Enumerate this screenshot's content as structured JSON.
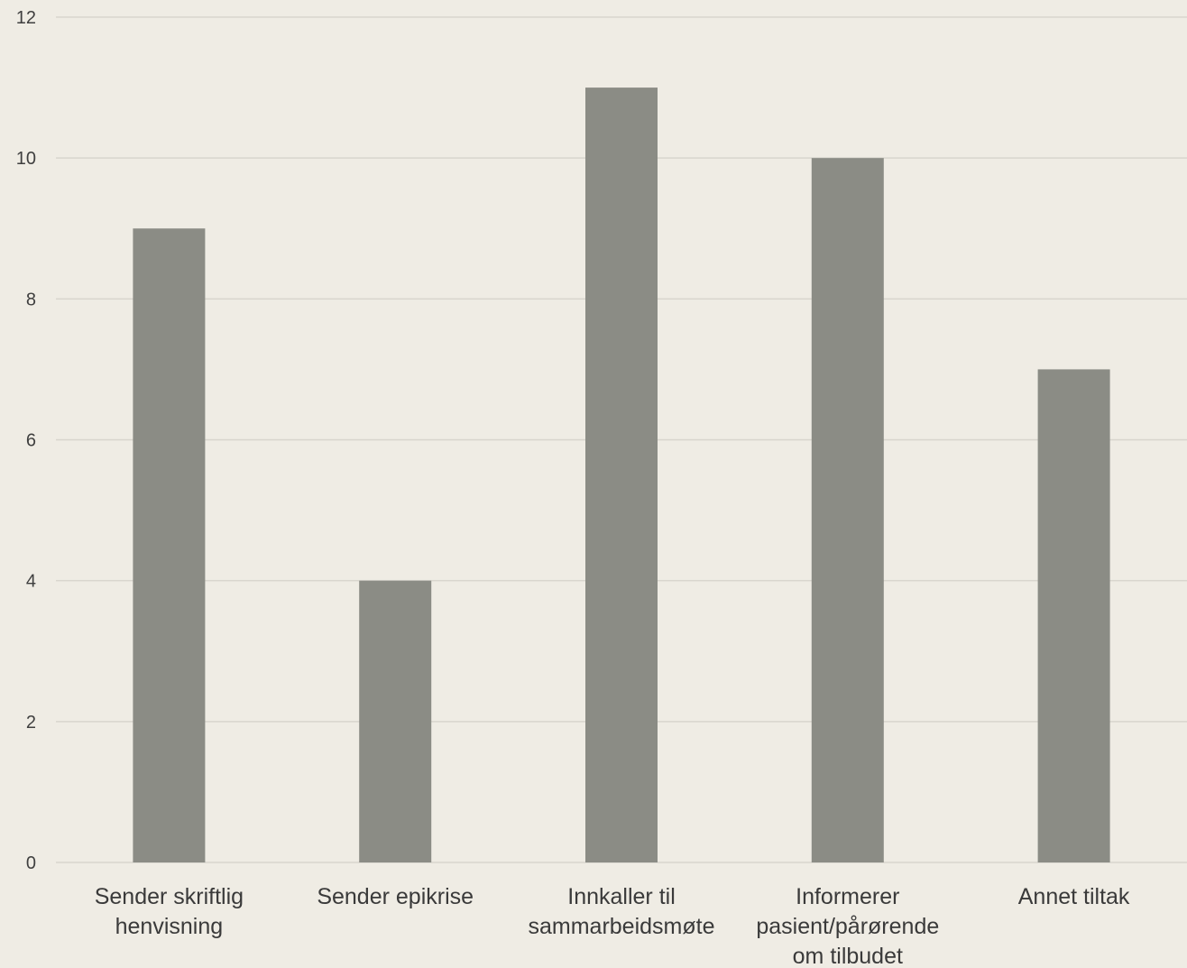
{
  "chart_data": {
    "type": "bar",
    "title": "",
    "xlabel": "",
    "ylabel": "",
    "categories": [
      [
        "Sender skriftlig",
        "henvisning"
      ],
      [
        "Sender epikrise"
      ],
      [
        "Innkaller til",
        "sammarbeidsmøte"
      ],
      [
        "Informerer",
        "pasient/pårørende",
        "om tilbudet"
      ],
      [
        "Annet tiltak"
      ]
    ],
    "values": [
      9,
      4,
      11,
      10,
      7
    ],
    "ylim": [
      0,
      12
    ],
    "yticks": [
      0,
      2,
      4,
      6,
      8,
      10,
      12
    ],
    "grid": true,
    "legend": "none",
    "colors": {
      "bar": "#8b8c85",
      "background": "#efece4",
      "grid": "#d8d5cd"
    }
  }
}
